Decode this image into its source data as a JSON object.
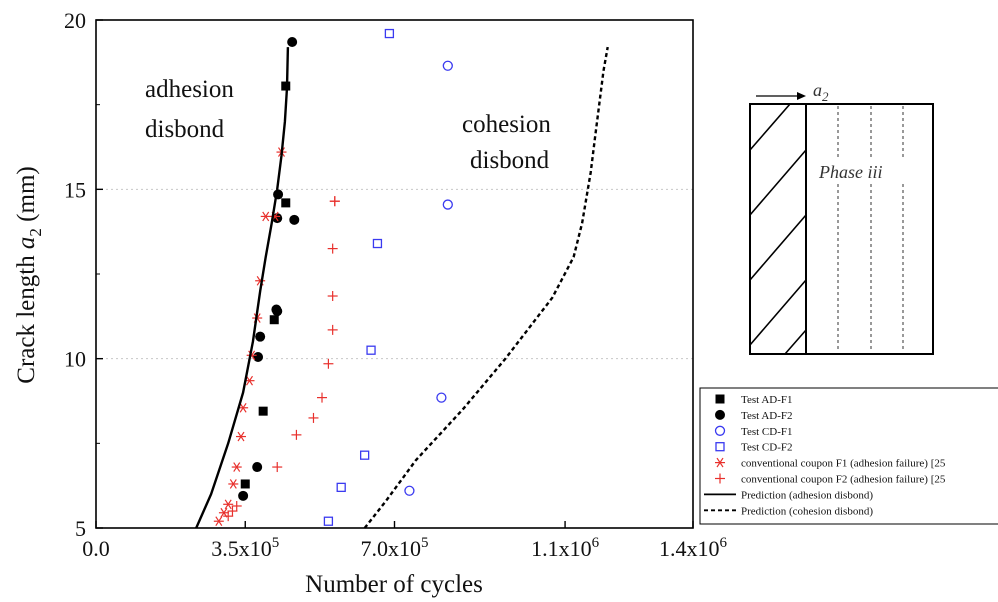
{
  "chart_data": {
    "type": "scatter",
    "title": "",
    "xlabel": "Number of cycles",
    "ylabel_prefix": "Crack length ",
    "ylabel_var": "a",
    "ylabel_sub": "2",
    "ylabel_suffix": " (mm)",
    "xlim": [
      0,
      1400000
    ],
    "ylim": [
      5,
      20
    ],
    "grid": "horizontal dotted",
    "x_ticks": [
      {
        "value": 0,
        "label": "0.0",
        "sup": ""
      },
      {
        "value": 350000,
        "label": "3.5x10",
        "sup": "5"
      },
      {
        "value": 700000,
        "label": "7.0x10",
        "sup": "5"
      },
      {
        "value": 1100000,
        "label": "1.1x10",
        "sup": "6"
      },
      {
        "value": 1400000,
        "label": "1.4x10",
        "sup": "6"
      }
    ],
    "y_ticks": [
      {
        "value": 5,
        "label": "5"
      },
      {
        "value": 10,
        "label": "10"
      },
      {
        "value": 15,
        "label": "15"
      },
      {
        "value": 20,
        "label": "20"
      }
    ],
    "annotations": [
      {
        "text": "adhesion",
        "x": 120000,
        "y": 17.8
      },
      {
        "text": "disbond",
        "x": 120000,
        "y": 16.8
      },
      {
        "text": "cohesion",
        "x": 880000,
        "y": 16.9
      },
      {
        "text": "disbond",
        "x": 900000,
        "y": 15.9
      }
    ],
    "legend_position": "bottom-right, outside plot area",
    "series": [
      {
        "name": "Test AD-F1",
        "marker": "filled-square",
        "color": "#000000",
        "x": [
          350000,
          392000,
          418000,
          445000,
          445000
        ],
        "y": [
          6.3,
          8.45,
          11.15,
          14.6,
          18.05
        ]
      },
      {
        "name": "Test AD-F2",
        "marker": "filled-circle",
        "color": "#000000",
        "x": [
          345000,
          378000,
          380000,
          385000,
          423000,
          425000,
          427000,
          460000,
          465000,
          425000
        ],
        "y": [
          5.95,
          6.8,
          10.05,
          10.65,
          11.45,
          14.15,
          14.85,
          19.35,
          14.1,
          11.4
        ]
      },
      {
        "name": "Test CD-F1",
        "marker": "open-circle",
        "color": "#3a3af0",
        "x": [
          735000,
          810000,
          825000,
          825000
        ],
        "y": [
          6.1,
          8.85,
          14.55,
          18.65
        ]
      },
      {
        "name": "Test CD-F2",
        "marker": "open-square",
        "color": "#3a3af0",
        "x": [
          545000,
          575000,
          630000,
          645000,
          660000,
          688000
        ],
        "y": [
          5.2,
          6.2,
          7.15,
          10.25,
          13.4,
          19.6
        ]
      },
      {
        "name": "conventional coupon F1 (adhesion failure) [25",
        "marker": "asterisk",
        "color": "#e8302c",
        "x": [
          288000,
          300000,
          310000,
          322000,
          330000,
          340000,
          345000,
          360000,
          365000,
          378000,
          385000,
          398000,
          420000,
          435000
        ],
        "y": [
          5.2,
          5.45,
          5.7,
          6.3,
          6.8,
          7.7,
          8.55,
          9.35,
          10.1,
          11.2,
          12.3,
          14.2,
          14.2,
          16.1
        ]
      },
      {
        "name": "conventional coupon F2 (adhesion failure) [25",
        "marker": "plus",
        "color": "#e8302c",
        "x": [
          310000,
          320000,
          330000,
          425000,
          470000,
          510000,
          530000,
          545000,
          555000,
          555000,
          555000,
          560000,
          560000
        ],
        "y": [
          5.35,
          5.5,
          5.65,
          6.8,
          7.75,
          8.25,
          8.85,
          9.85,
          10.85,
          11.85,
          13.25,
          14.65,
          14.65
        ]
      },
      {
        "name": "Prediction (adhesion disbond)",
        "marker": "solid-line",
        "color": "#000000",
        "x": [
          235000,
          270000,
          310000,
          345000,
          368000,
          385000,
          398000,
          412000,
          425000,
          435000,
          443000,
          448000,
          450000
        ],
        "y": [
          5.0,
          6.0,
          7.5,
          9.0,
          10.5,
          12.0,
          13.0,
          14.0,
          15.0,
          16.0,
          17.0,
          18.0,
          19.2
        ]
      },
      {
        "name": "Prediction (cohesion disbond)",
        "marker": "dashed-line",
        "color": "#000000",
        "x": [
          630000,
          680000,
          750000,
          860000,
          960000,
          1070000,
          1120000,
          1140000,
          1160000,
          1170000,
          1180000,
          1190000,
          1200000
        ],
        "y": [
          5.0,
          5.8,
          7.0,
          8.5,
          10.0,
          11.8,
          13.0,
          14.0,
          15.5,
          16.5,
          17.5,
          18.5,
          19.2
        ]
      }
    ],
    "inset": {
      "label_var": "a",
      "label_sub": "2",
      "phase_label": "Phase iii"
    }
  }
}
